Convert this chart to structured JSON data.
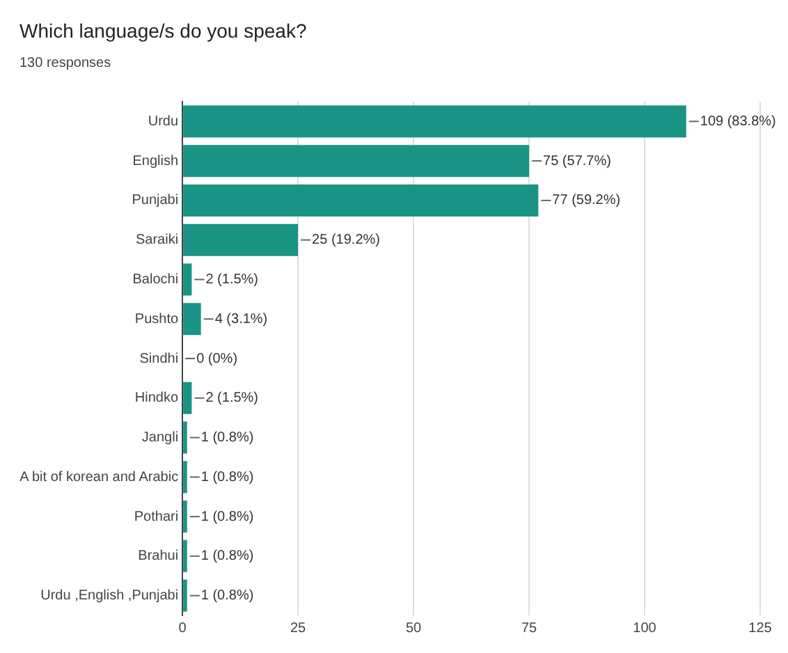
{
  "chart_data": {
    "type": "bar",
    "title": "Which language/s do you speak?",
    "subtitle": "130 responses",
    "orientation": "horizontal",
    "categories": [
      "Urdu",
      "English",
      "Punjabi",
      "Saraiki",
      "Balochi",
      "Pushto",
      "Sindhi",
      "Hindko",
      "Jangli",
      "A bit of korean and Arabic",
      "Pothari",
      "Brahui",
      "Urdu ,English ,Punjabi"
    ],
    "values": [
      109,
      75,
      77,
      25,
      2,
      4,
      0,
      2,
      1,
      1,
      1,
      1,
      1
    ],
    "value_labels": [
      "109 (83.8%)",
      "75 (57.7%)",
      "77 (59.2%)",
      "25 (19.2%)",
      "2 (1.5%)",
      "4 (3.1%)",
      "0 (0%)",
      "2 (1.5%)",
      "1 (0.8%)",
      "1 (0.8%)",
      "1 (0.8%)",
      "1 (0.8%)",
      "1 (0.8%)"
    ],
    "color": "#1a9484",
    "xlim": [
      0,
      125
    ],
    "xticks": [
      0,
      25,
      50,
      75,
      100,
      125
    ],
    "grid": "x"
  }
}
